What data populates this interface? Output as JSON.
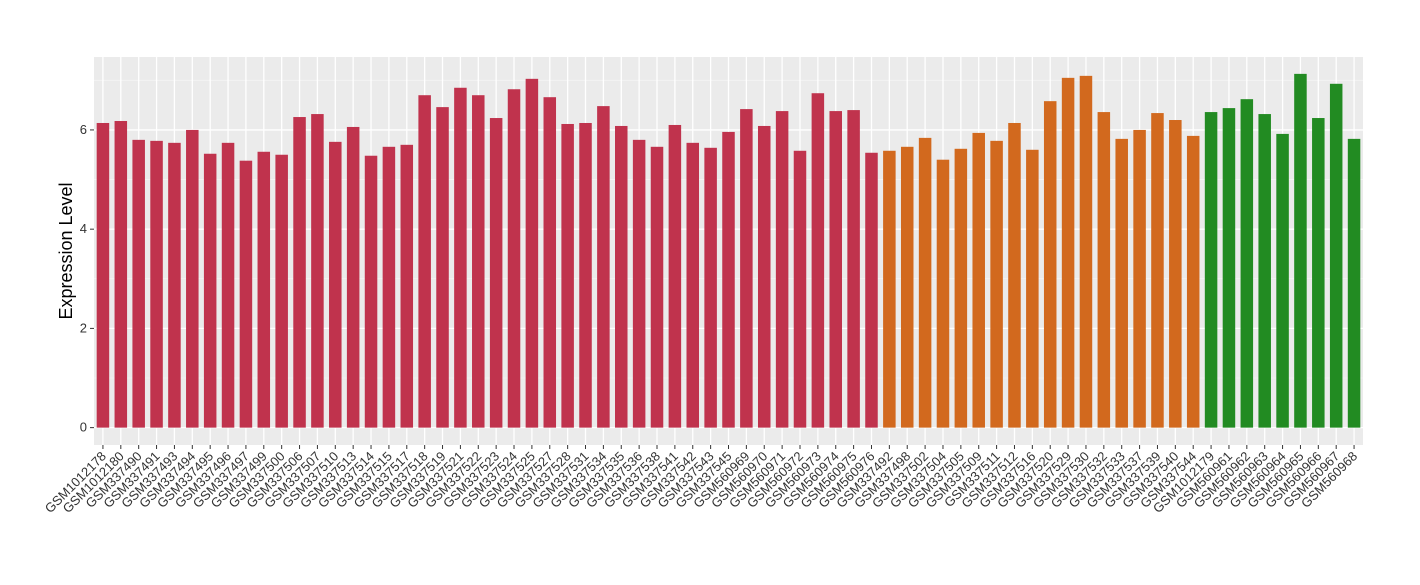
{
  "chart_data": {
    "type": "bar",
    "y_label": "Expression Level",
    "categories": [
      "GSM1012178",
      "GSM1012180",
      "GSM337490",
      "GSM337491",
      "GSM337493",
      "GSM337494",
      "GSM337495",
      "GSM337496",
      "GSM337497",
      "GSM337499",
      "GSM337500",
      "GSM337506",
      "GSM337507",
      "GSM337510",
      "GSM337513",
      "GSM337514",
      "GSM337515",
      "GSM337517",
      "GSM337518",
      "GSM337519",
      "GSM337521",
      "GSM337522",
      "GSM337523",
      "GSM337524",
      "GSM337525",
      "GSM337527",
      "GSM337528",
      "GSM337531",
      "GSM337534",
      "GSM337535",
      "GSM337536",
      "GSM337538",
      "GSM337541",
      "GSM337542",
      "GSM337543",
      "GSM337545",
      "GSM560969",
      "GSM560970",
      "GSM560971",
      "GSM560972",
      "GSM560973",
      "GSM560974",
      "GSM560975",
      "GSM560976",
      "GSM337492",
      "GSM337498",
      "GSM337502",
      "GSM337504",
      "GSM337505",
      "GSM337509",
      "GSM337511",
      "GSM337512",
      "GSM337516",
      "GSM337520",
      "GSM337529",
      "GSM337530",
      "GSM337532",
      "GSM337533",
      "GSM337537",
      "GSM337539",
      "GSM337540",
      "GSM337544",
      "GSM1012179",
      "GSM560961",
      "GSM560962",
      "GSM560963",
      "GSM560964",
      "GSM560965",
      "GSM560966",
      "GSM560967",
      "GSM560968"
    ],
    "values": [
      6.14,
      6.18,
      5.8,
      5.78,
      5.74,
      6.0,
      5.52,
      5.74,
      5.38,
      5.56,
      5.5,
      6.26,
      6.32,
      5.76,
      6.06,
      5.48,
      5.66,
      5.7,
      6.7,
      6.46,
      6.85,
      6.7,
      6.24,
      6.82,
      7.03,
      6.66,
      6.12,
      6.14,
      6.48,
      6.08,
      5.8,
      5.66,
      6.1,
      5.74,
      5.64,
      5.96,
      6.42,
      6.08,
      6.38,
      5.58,
      6.74,
      6.38,
      6.4,
      5.54,
      5.58,
      5.66,
      5.84,
      5.4,
      5.62,
      5.94,
      5.78,
      6.14,
      5.6,
      6.58,
      7.05,
      7.09,
      6.36,
      5.82,
      6.0,
      6.34,
      6.2,
      5.88,
      6.36,
      6.44,
      6.62,
      6.32,
      5.92,
      7.13,
      6.24,
      6.93,
      5.82
    ],
    "colors": [
      "#c0334d",
      "#c0334d",
      "#c0334d",
      "#c0334d",
      "#c0334d",
      "#c0334d",
      "#c0334d",
      "#c0334d",
      "#c0334d",
      "#c0334d",
      "#c0334d",
      "#c0334d",
      "#c0334d",
      "#c0334d",
      "#c0334d",
      "#c0334d",
      "#c0334d",
      "#c0334d",
      "#c0334d",
      "#c0334d",
      "#c0334d",
      "#c0334d",
      "#c0334d",
      "#c0334d",
      "#c0334d",
      "#c0334d",
      "#c0334d",
      "#c0334d",
      "#c0334d",
      "#c0334d",
      "#c0334d",
      "#c0334d",
      "#c0334d",
      "#c0334d",
      "#c0334d",
      "#c0334d",
      "#c0334d",
      "#c0334d",
      "#c0334d",
      "#c0334d",
      "#c0334d",
      "#c0334d",
      "#c0334d",
      "#c0334d",
      "#d2691e",
      "#d2691e",
      "#d2691e",
      "#d2691e",
      "#d2691e",
      "#d2691e",
      "#d2691e",
      "#d2691e",
      "#d2691e",
      "#d2691e",
      "#d2691e",
      "#d2691e",
      "#d2691e",
      "#d2691e",
      "#d2691e",
      "#d2691e",
      "#d2691e",
      "#d2691e",
      "#228b22",
      "#228b22",
      "#228b22",
      "#228b22",
      "#228b22",
      "#228b22",
      "#228b22",
      "#228b22",
      "#228b22"
    ],
    "ylim": [
      -0.35,
      7.47
    ],
    "yticks": [
      0,
      2,
      4,
      6
    ],
    "grid": true
  }
}
